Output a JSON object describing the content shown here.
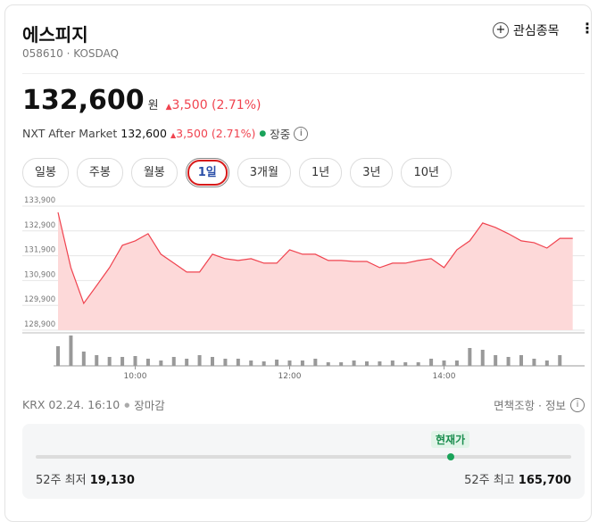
{
  "header": {
    "name": "에스피지",
    "code": "058610 · KOSDAQ",
    "watchlist": "관심종목"
  },
  "price": {
    "value": {
      "value": 132600,
      "label": "132,600"
    },
    "unit": "원",
    "change": "3,500 (2.71%)"
  },
  "nxt": {
    "label": "NXT After Market",
    "price": "132,600",
    "change": "3,500 (2.71%)",
    "status": "장중"
  },
  "tabs": [
    "일봉",
    "주봉",
    "월봉",
    "1일",
    "3개월",
    "1년",
    "3년",
    "10년"
  ],
  "selected_tab": 3,
  "chart_data": {
    "type": "area",
    "color": "#f0434f",
    "x": [
      "09:00",
      "09:10",
      "09:20",
      "09:30",
      "09:40",
      "09:50",
      "10:00",
      "10:10",
      "10:20",
      "10:30",
      "10:40",
      "10:50",
      "11:00",
      "11:10",
      "11:20",
      "11:30",
      "11:40",
      "11:50",
      "12:00",
      "12:10",
      "12:20",
      "12:30",
      "12:40",
      "12:50",
      "13:00",
      "13:10",
      "13:20",
      "13:30",
      "13:40",
      "13:50",
      "14:00",
      "14:10",
      "14:20",
      "14:30",
      "14:40",
      "14:50",
      "15:00",
      "15:10",
      "15:20",
      "15:30",
      "15:40"
    ],
    "values": [
      133650,
      131420,
      129980,
      130700,
      131420,
      132320,
      132500,
      132790,
      131960,
      131600,
      131240,
      131240,
      131960,
      131780,
      131710,
      131780,
      131600,
      131600,
      132140,
      131960,
      131960,
      131710,
      131710,
      131670,
      131670,
      131420,
      131600,
      131600,
      131710,
      131780,
      131420,
      132140,
      132500,
      133220,
      133040,
      132790,
      132500,
      132430,
      132210,
      132600,
      132600
    ],
    "volume": [
      22,
      34,
      16,
      12,
      10,
      10,
      11,
      8,
      6,
      10,
      8,
      12,
      10,
      8,
      8,
      6,
      5,
      7,
      6,
      6,
      8,
      4,
      4,
      6,
      5,
      5,
      6,
      4,
      4,
      8,
      6,
      6,
      20,
      18,
      12,
      10,
      12,
      8,
      6,
      12,
      null
    ],
    "xticks": [
      "10:00",
      "12:00",
      "14:00"
    ],
    "ylim": [
      128900,
      133900
    ],
    "yticks": [
      {
        "value": 128900,
        "label": "128,900"
      },
      {
        "value": 129900,
        "label": "129,900"
      },
      {
        "value": 130900,
        "label": "130,900"
      },
      {
        "value": 131900,
        "label": "131,900"
      },
      {
        "value": 132900,
        "label": "132,900"
      },
      {
        "value": 133900,
        "label": "133,900"
      }
    ],
    "grid": true
  },
  "footer": {
    "market": "KRX 02.24. 16:10",
    "status": "장마감",
    "links": "면책조항 · 정보"
  },
  "range": {
    "badge": "현재가",
    "low_label": "52주 최저",
    "low": {
      "value": 19130,
      "label": "19,130"
    },
    "high_label": "52주 최고",
    "high": {
      "value": 165700,
      "label": "165,700"
    }
  }
}
